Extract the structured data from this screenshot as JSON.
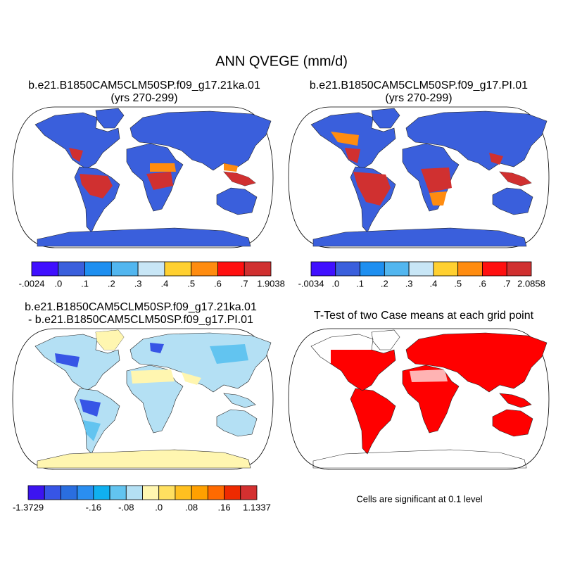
{
  "title": "ANN QVEGE (mm/d)",
  "panels": [
    {
      "title": "b.e21.B1850CAM5CLM50SP.f09_g17.21ka.01",
      "subtitle": "(yrs 270-299)",
      "colorbar": {
        "colors": [
          "#4010ff",
          "#3a5fdc",
          "#1e8ff0",
          "#52b6ef",
          "#c8e6f6",
          "#ffd030",
          "#ff8c10",
          "#ff1010",
          "#d03030"
        ],
        "labels": [
          "-.0024",
          ".0",
          ".1",
          ".2",
          ".3",
          ".4",
          ".5",
          ".6",
          ".7",
          "1.9038"
        ]
      }
    },
    {
      "title": "b.e21.B1850CAM5CLM50SP.f09_g17.PI.01",
      "subtitle": "(yrs 270-299)",
      "colorbar": {
        "colors": [
          "#4010ff",
          "#3a5fdc",
          "#1e8ff0",
          "#52b6ef",
          "#c8e6f6",
          "#ffd030",
          "#ff8c10",
          "#ff1010",
          "#d03030"
        ],
        "labels": [
          "-.0034",
          ".0",
          ".1",
          ".2",
          ".3",
          ".4",
          ".5",
          ".6",
          ".7",
          "2.0858"
        ]
      }
    },
    {
      "title": "b.e21.B1850CAM5CLM50SP.f09_g17.21ka.01",
      "subtitle": "- b.e21.B1850CAM5CLM50SP.f09_g17.PI.01",
      "colorbar": {
        "colors": [
          "#3c14f0",
          "#3755e6",
          "#2a6ee0",
          "#2a8ef0",
          "#10b0f0",
          "#62c4f0",
          "#b4e0f4",
          "#fff6b0",
          "#ffe060",
          "#ffc020",
          "#ffa000",
          "#ff6a00",
          "#ee2a00",
          "#d43030"
        ],
        "labels": [
          "-1.3729",
          null,
          null,
          null,
          "-.16",
          null,
          "-.08",
          null,
          ".0",
          null,
          ".08",
          null,
          ".16",
          null,
          "1.1337"
        ]
      }
    },
    {
      "title": "T-Test of two Case means at each grid point",
      "note": "Cells are significant at 0.1 level"
    }
  ]
}
